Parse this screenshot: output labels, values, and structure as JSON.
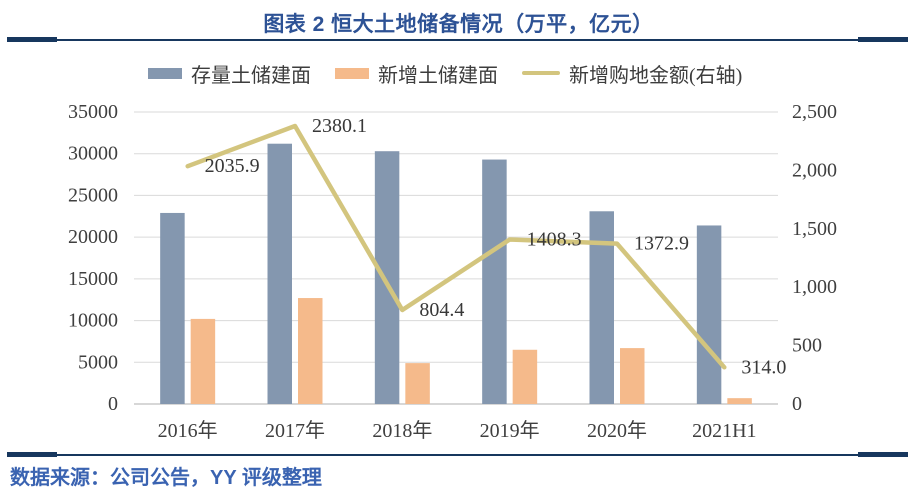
{
  "header": {
    "title": "图表 2 恒大土地储备情况（万平，亿元）"
  },
  "footer": {
    "source": "数据来源：公司公告，YY 评级整理"
  },
  "colors": {
    "title_text": "#2D5295",
    "divider": "#17375E",
    "source_text": "#3A63B1",
    "gridline": "#DADADA",
    "axis_line": "#BFBFBF"
  },
  "chart_data": {
    "type": "combo_bar_line",
    "title": "图表 2 恒大土地储备情况（万平，亿元）",
    "categories": [
      "2016年",
      "2017年",
      "2018年",
      "2019年",
      "2020年",
      "2021H1"
    ],
    "series": [
      {
        "key": "stock-land",
        "name": "存量土储建面",
        "type": "bar",
        "axis": "left",
        "color": "#8497AF",
        "values": [
          22900,
          31200,
          30300,
          29300,
          23100,
          21400
        ]
      },
      {
        "key": "new-land",
        "name": "新增土储建面",
        "type": "bar",
        "axis": "left",
        "color": "#F5BA8B",
        "values": [
          10200,
          12700,
          4900,
          6500,
          6700,
          700
        ]
      },
      {
        "key": "new-purchase-amount",
        "name": "新增购地金额(右轴)",
        "type": "line",
        "axis": "right",
        "color": "#D3C57E",
        "values": [
          2035.9,
          2380.1,
          804.4,
          1408.3,
          1372.9,
          314.0
        ],
        "data_labels": [
          "2035.9",
          "2380.1",
          "804.4",
          "1408.3",
          "1372.9",
          "314.0"
        ]
      }
    ],
    "left_axis": {
      "min": 0,
      "max": 35000,
      "step": 5000,
      "tick_labels": [
        "0",
        "5000",
        "10000",
        "15000",
        "20000",
        "25000",
        "30000",
        "35000"
      ]
    },
    "right_axis": {
      "min": 0,
      "max": 2500,
      "step": 500,
      "tick_labels": [
        "0",
        "500",
        "1,000",
        "1,500",
        "2,000",
        "2,500"
      ]
    },
    "grid": "horizontal",
    "legend_position": "top"
  }
}
